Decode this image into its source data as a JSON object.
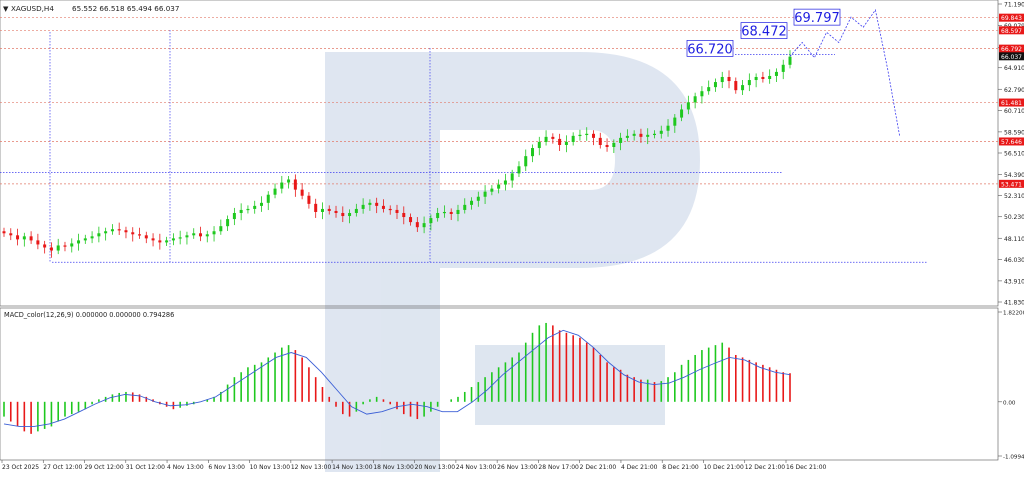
{
  "header": {
    "symbol": "XAGUSD,H4",
    "ohlc": "65.552 66.518 65.494 66.037"
  },
  "indicator": {
    "label": "MACD_color(12,26,9) 0.000000 0.000000 0.794286"
  },
  "colors": {
    "bull": "#1ec81e",
    "bear": "#e81818",
    "level_line": "#e27a6a",
    "dotted_blue": "#3c3cf0",
    "signal_line": "#3b5fd6",
    "watermark": "#d9e2ee",
    "target_box_text": "#1d1de0",
    "axis_text": "#222222"
  },
  "chart_data": [
    {
      "type": "candlestick",
      "x_labels": [
        "23 Oct 2025",
        "27 Oct 12:00",
        "29 Oct 12:00",
        "31 Oct 12:00",
        "4 Nov 13:00",
        "6 Nov 13:00",
        "10 Nov 13:00",
        "12 Nov 13:00",
        "14 Nov 13:00",
        "18 Nov 13:00",
        "20 Nov 13:00",
        "24 Nov 13:00",
        "26 Nov 13:00",
        "28 Nov 17:00",
        "2 Dec 21:00",
        "4 Dec 21:00",
        "8 Dec 21:00",
        "10 Dec 21:00",
        "12 Dec 21:00",
        "16 Dec 21:00"
      ],
      "y_ticks": [
        "71.190",
        "69.079",
        "66.925",
        "64.910",
        "62.790",
        "60.710",
        "58.590",
        "56.510",
        "54.390",
        "52.310",
        "50.230",
        "48.110",
        "46.030",
        "43.910",
        "41.830"
      ],
      "ylim": [
        41.83,
        71.19
      ],
      "price_tags": [
        {
          "label": "69.843",
          "value": 69.843,
          "color": "#e81818"
        },
        {
          "label": "68.597",
          "value": 68.597,
          "color": "#e81818"
        },
        {
          "label": "66.792",
          "value": 66.792,
          "color": "#e81818"
        },
        {
          "label": "66.037",
          "value": 66.037,
          "color": "#111111"
        },
        {
          "label": "61.481",
          "value": 61.481,
          "color": "#e81818"
        },
        {
          "label": "57.646",
          "value": 57.646,
          "color": "#e81818"
        },
        {
          "label": "53.471",
          "value": 53.471,
          "color": "#e81818"
        }
      ],
      "targets": [
        {
          "label": "66.720",
          "value": 66.72
        },
        {
          "label": "68.472",
          "value": 68.472
        },
        {
          "label": "69.797",
          "value": 69.797
        }
      ],
      "levels": [
        69.843,
        68.597,
        66.792,
        61.481,
        57.646,
        53.471
      ],
      "close_series": [
        48.6,
        48.4,
        48.0,
        48.3,
        47.9,
        47.5,
        47.2,
        46.9,
        47.4,
        47.3,
        47.6,
        47.9,
        48.1,
        48.3,
        48.6,
        48.8,
        49.0,
        48.9,
        48.7,
        48.5,
        48.4,
        48.1,
        47.9,
        47.7,
        47.9,
        48.1,
        48.2,
        48.4,
        48.6,
        48.3,
        48.5,
        48.8,
        49.3,
        50.0,
        50.6,
        50.9,
        51.0,
        51.3,
        51.6,
        52.4,
        53.0,
        53.6,
        53.9,
        52.9,
        52.3,
        51.5,
        50.7,
        51.0,
        50.8,
        50.6,
        50.3,
        50.6,
        51.0,
        51.4,
        51.6,
        51.3,
        51.0,
        50.9,
        50.6,
        50.2,
        49.7,
        49.2,
        49.6,
        50.1,
        50.6,
        50.7,
        50.5,
        50.9,
        51.4,
        51.8,
        52.2,
        52.7,
        53.0,
        53.4,
        53.8,
        54.5,
        55.2,
        56.2,
        57.0,
        57.6,
        58.1,
        57.9,
        57.3,
        57.6,
        58.2,
        58.3,
        58.4,
        58.0,
        57.3,
        57.1,
        57.5,
        58.0,
        58.2,
        58.4,
        58.1,
        58.3,
        58.4,
        58.7,
        59.2,
        60.0,
        60.8,
        61.5,
        62.1,
        62.6,
        63.0,
        63.5,
        64.0,
        63.6,
        62.7,
        63.2,
        63.7,
        64.0,
        63.8,
        64.1,
        64.5,
        65.2,
        66.0
      ],
      "forecast_path": [
        {
          "value": 66.037,
          "t": 0
        },
        {
          "value": 67.4,
          "t": 1
        },
        {
          "value": 65.9,
          "t": 2
        },
        {
          "value": 68.4,
          "t": 3
        },
        {
          "value": 67.4,
          "t": 4
        },
        {
          "value": 69.9,
          "t": 5
        },
        {
          "value": 68.9,
          "t": 6
        },
        {
          "value": 70.6,
          "t": 7
        },
        {
          "value": 64.8,
          "t": 8
        },
        {
          "value": 58.1,
          "t": 9
        }
      ]
    },
    {
      "type": "bar",
      "name": "MACD_color(12,26,9)",
      "y_ticks": [
        "1.822008",
        "0.00",
        "-1.099483"
      ],
      "ylim": [
        -1.099483,
        1.822008
      ],
      "histogram": [
        -0.3,
        -0.4,
        -0.5,
        -0.6,
        -0.65,
        -0.6,
        -0.55,
        -0.5,
        -0.4,
        -0.3,
        -0.25,
        -0.2,
        -0.15,
        -0.05,
        0.05,
        0.1,
        0.15,
        0.18,
        0.2,
        0.19,
        0.15,
        0.1,
        0.05,
        -0.05,
        -0.1,
        -0.15,
        -0.12,
        -0.08,
        -0.05,
        0.0,
        0.05,
        0.1,
        0.2,
        0.35,
        0.5,
        0.6,
        0.7,
        0.75,
        0.8,
        0.9,
        1.0,
        1.1,
        1.15,
        1.05,
        0.9,
        0.7,
        0.5,
        0.3,
        0.1,
        -0.1,
        -0.25,
        -0.3,
        -0.2,
        -0.05,
        0.05,
        0.1,
        0.05,
        -0.05,
        -0.15,
        -0.25,
        -0.3,
        -0.35,
        -0.3,
        -0.2,
        -0.1,
        0.0,
        0.05,
        0.1,
        0.2,
        0.3,
        0.4,
        0.5,
        0.6,
        0.7,
        0.8,
        0.9,
        1.0,
        1.2,
        1.4,
        1.55,
        1.6,
        1.55,
        1.45,
        1.4,
        1.35,
        1.3,
        1.2,
        1.1,
        0.95,
        0.8,
        0.7,
        0.65,
        0.55,
        0.5,
        0.45,
        0.45,
        0.4,
        0.42,
        0.5,
        0.6,
        0.75,
        0.85,
        0.95,
        1.05,
        1.1,
        1.15,
        1.2,
        1.1,
        0.95,
        0.9,
        0.85,
        0.8,
        0.75,
        0.7,
        0.65,
        0.6,
        0.58
      ],
      "signal": [
        -0.45,
        -0.5,
        -0.5,
        -0.45,
        -0.35,
        -0.2,
        -0.05,
        0.08,
        0.15,
        0.12,
        0.0,
        -0.08,
        -0.06,
        0.0,
        0.1,
        0.3,
        0.5,
        0.7,
        0.9,
        1.0,
        0.9,
        0.6,
        0.25,
        -0.1,
        -0.25,
        -0.2,
        -0.1,
        -0.05,
        -0.1,
        -0.2,
        -0.2,
        0.0,
        0.25,
        0.55,
        0.8,
        1.05,
        1.3,
        1.45,
        1.35,
        1.1,
        0.8,
        0.55,
        0.4,
        0.35,
        0.38,
        0.5,
        0.65,
        0.78,
        0.9,
        0.85,
        0.7,
        0.6,
        0.55
      ]
    }
  ]
}
